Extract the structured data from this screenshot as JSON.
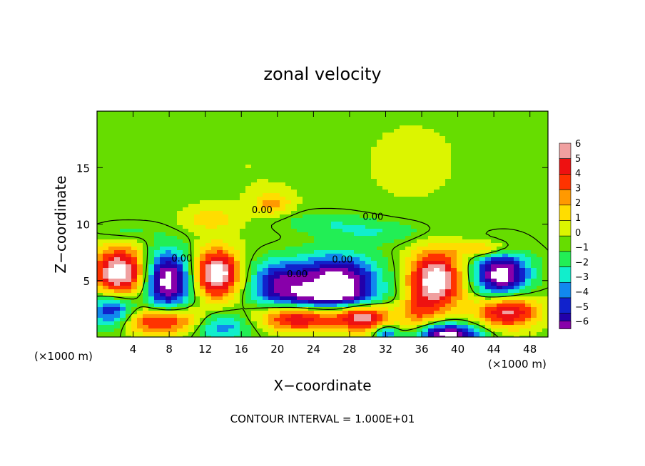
{
  "chart_data": {
    "type": "heatmap",
    "title": "zonal velocity",
    "xlabel": "X−coordinate",
    "ylabel": "Z−coordinate",
    "x_unit_left": "(×1000 m)",
    "x_unit_right": "(×1000 m)",
    "footer": "CONTOUR INTERVAL = 1.000E+01",
    "xlim": [
      0,
      50
    ],
    "ylim": [
      0,
      20
    ],
    "x_ticks": [
      4,
      8,
      12,
      16,
      20,
      24,
      28,
      32,
      36,
      40,
      44,
      48
    ],
    "x_tick_labels": [
      "4",
      "8",
      "12",
      "16",
      "20",
      "24",
      "28",
      "32",
      "36",
      "40",
      "44",
      "48"
    ],
    "y_ticks": [
      5,
      10,
      15
    ],
    "y_tick_labels": [
      "5",
      "10",
      "15"
    ],
    "colorbar": {
      "levels": [
        6,
        5,
        4,
        3,
        2,
        1,
        0,
        -1,
        -2,
        -3,
        -4,
        -5,
        -6
      ],
      "labels": [
        "6",
        "5",
        "4",
        "3",
        "2",
        "1",
        "0",
        "−1",
        "−2",
        "−3",
        "−4",
        "−5",
        "−6"
      ],
      "colors": [
        "#f0a0a0",
        "#ee1111",
        "#ff3300",
        "#ff9900",
        "#ffdd00",
        "#dcf500",
        "#66dd00",
        "#22ee55",
        "#11eecc",
        "#1188ee",
        "#1122cc",
        "#2200aa",
        "#8800aa"
      ],
      "over_color": "#ffffff",
      "under_color": "#ffffff"
    },
    "contour_labels": [
      {
        "text": "0.00",
        "x": 18.3,
        "y": 11.3
      },
      {
        "text": "0.00",
        "x": 30.6,
        "y": 10.7
      },
      {
        "text": "0.00",
        "x": 27.2,
        "y": 6.9
      },
      {
        "text": "0.00",
        "x": 9.4,
        "y": 7.0
      },
      {
        "text": "0.00",
        "x": 22.2,
        "y": 5.6
      }
    ],
    "blobs": [
      {
        "x": 17.0,
        "y": 15.0,
        "rx": 8,
        "ry": 6,
        "v": 0.4
      },
      {
        "x": 35.0,
        "y": 15.5,
        "rx": 7,
        "ry": 5,
        "v": 0.6
      },
      {
        "x": 3.0,
        "y": 18.0,
        "rx": 5,
        "ry": 2.5,
        "v": 0.2
      },
      {
        "x": 19.5,
        "y": 11.8,
        "rx": 2,
        "ry": 1,
        "v": 2.6
      },
      {
        "x": 12.5,
        "y": 10.5,
        "rx": 3,
        "ry": 1,
        "v": 2.0
      },
      {
        "x": 25.0,
        "y": 10.2,
        "rx": 5,
        "ry": 0.9,
        "v": -1.3
      },
      {
        "x": 31.0,
        "y": 9.3,
        "rx": 6,
        "ry": 1.0,
        "v": -1.6
      },
      {
        "x": 3.0,
        "y": 9.3,
        "rx": 3,
        "ry": 0.8,
        "v": -1.1
      },
      {
        "x": 2.5,
        "y": 5.7,
        "rx": 3.0,
        "ry": 2.2,
        "v": 7.5
      },
      {
        "x": 7.8,
        "y": 5.0,
        "rx": 2.6,
        "ry": 2.6,
        "v": -7.5
      },
      {
        "x": 13.3,
        "y": 5.6,
        "rx": 2.5,
        "ry": 2.2,
        "v": 7.5
      },
      {
        "x": 20.0,
        "y": 5.0,
        "rx": 3.0,
        "ry": 1.8,
        "v": -4.6
      },
      {
        "x": 26.5,
        "y": 5.0,
        "rx": 4.5,
        "ry": 2.2,
        "v": -7.5
      },
      {
        "x": 24.5,
        "y": 3.6,
        "rx": 6,
        "ry": 1.0,
        "v": -3.5
      },
      {
        "x": 37.5,
        "y": 5.0,
        "rx": 3.0,
        "ry": 2.6,
        "v": 7.5
      },
      {
        "x": 44.8,
        "y": 5.5,
        "rx": 3.0,
        "ry": 2.0,
        "v": -7.5
      },
      {
        "x": 43.0,
        "y": 7.8,
        "rx": 3,
        "ry": 0.7,
        "v": 3.0
      },
      {
        "x": 1.8,
        "y": 2.3,
        "rx": 2.5,
        "ry": 1.6,
        "v": -5.5
      },
      {
        "x": 7.5,
        "y": 1.4,
        "rx": 5,
        "ry": 1.2,
        "v": 5.5
      },
      {
        "x": 13.5,
        "y": 1.0,
        "rx": 3.5,
        "ry": 1.3,
        "v": -4.0
      },
      {
        "x": 22.5,
        "y": 1.6,
        "rx": 4.5,
        "ry": 1.1,
        "v": 5.5
      },
      {
        "x": 29.5,
        "y": 1.7,
        "rx": 3.0,
        "ry": 1.2,
        "v": 6.0
      },
      {
        "x": 32.0,
        "y": 0.3,
        "rx": 1.2,
        "ry": 0.7,
        "v": -4.0
      },
      {
        "x": 39.0,
        "y": 0.2,
        "rx": 3.5,
        "ry": 1.0,
        "v": -7.5
      },
      {
        "x": 45.5,
        "y": 2.3,
        "rx": 3.5,
        "ry": 1.5,
        "v": 6.0
      },
      {
        "x": 35.5,
        "y": 2.0,
        "rx": 2.0,
        "ry": 1.5,
        "v": 2.5
      }
    ]
  }
}
